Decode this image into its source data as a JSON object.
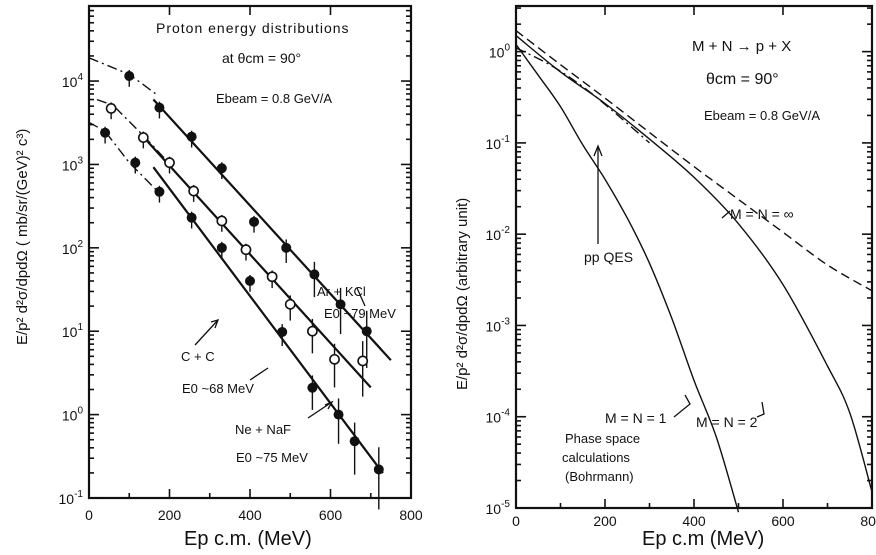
{
  "chart_data": [
    {
      "type": "scatter",
      "ylabel": "E/p² d²σ/dpdΩ  ( mb/sr/(GeV)² c³)",
      "xlabel": "Ep c.m. (MeV)",
      "xlim": [
        0,
        800
      ],
      "ylim_log10": [
        -1,
        4.9
      ],
      "x_ticks": [
        "0",
        "200",
        "400",
        "600",
        "800"
      ],
      "y_ticks": [
        "10-1",
        "100",
        "101",
        "102",
        "103",
        "104"
      ],
      "annotations": {
        "title_line1": "Proton energy distributions",
        "title_line2": "at θcm = 90°",
        "beam": "Ebeam = 0.8 GeV/A",
        "ar_label": "Ar + KCl",
        "ar_e0": "E0 ~79 MeV",
        "cc_label": "C + C",
        "cc_e0": "E0 ~68 MeV",
        "ne_label": "Ne + NaF",
        "ne_e0": "E0 ~75 MeV"
      },
      "series": [
        {
          "name": "Ar + KCl",
          "marker": "filled",
          "x": [
            40,
            100,
            175,
            255,
            330,
            410,
            490,
            560,
            625,
            690
          ],
          "y": [
            2400,
            11500,
            4800,
            2150,
            900,
            205,
            100,
            48,
            21,
            10
          ],
          "fit_from": 160,
          "fit_to": 750
        },
        {
          "name": "C + C",
          "marker": "open",
          "x": [
            55,
            135,
            200,
            260,
            330,
            390,
            455,
            500,
            555,
            610,
            680
          ],
          "y": [
            4700,
            2100,
            1050,
            480,
            210,
            95,
            45,
            21,
            10,
            4.6,
            4.4
          ],
          "fit_from": 145,
          "fit_to": 700
        },
        {
          "name": "Ne + NaF",
          "marker": "filled",
          "x": [
            115,
            175,
            255,
            330,
            400,
            480,
            555,
            620,
            660,
            720
          ],
          "y": [
            1050,
            470,
            230,
            100,
            40,
            9.8,
            2.1,
            1.0,
            0.48,
            0.22
          ],
          "fit_from": 160,
          "fit_to": 730
        }
      ],
      "extrapolations": [
        {
          "style": "dashdot",
          "x": [
            0,
            100,
            170
          ],
          "y": [
            19000,
            12000,
            6800
          ]
        },
        {
          "style": "dashdot",
          "x": [
            20,
            60,
            140,
            190
          ],
          "y": [
            6000,
            5100,
            2100,
            1150
          ]
        },
        {
          "style": "dashdot",
          "x": [
            0,
            40,
            100,
            170
          ],
          "y": [
            3200,
            2500,
            1050,
            480
          ]
        }
      ]
    },
    {
      "type": "line",
      "ylabel": "E/p² d²σ/dpdΩ (arbitrary unit)",
      "xlabel": "Ep c.m (MeV)",
      "xlim": [
        0,
        800
      ],
      "ylim_log10": [
        -5,
        0.5
      ],
      "x_ticks": [
        "0",
        "200",
        "400",
        "600",
        "800"
      ],
      "y_ticks": [
        "10-5",
        "10-4",
        "10-3",
        "10-2",
        "10-1",
        "100"
      ],
      "annotations": {
        "reaction": "M + N → p + X",
        "theta": "θcm = 90°",
        "beam": "Ebeam = 0.8 GeV/A",
        "ppqes": "pp QES",
        "inf_label": "M = N = ∞",
        "n1_label": "M = N = 1",
        "n2_label": "M = N = 2",
        "phase1": "Phase space",
        "phase2": "calculations",
        "phase3": "(Bohrmann)"
      },
      "series": [
        {
          "name": "M = N = ∞",
          "style": "dash",
          "x": [
            0,
            100,
            200,
            300,
            400,
            500,
            600,
            700,
            800
          ],
          "y": [
            1.7,
            0.72,
            0.31,
            0.13,
            0.055,
            0.024,
            0.0105,
            0.0046,
            0.0024
          ]
        },
        {
          "name": "M = N = 2",
          "style": "solid-dashdot",
          "x": [
            0,
            100,
            200,
            300,
            400,
            500,
            600,
            700,
            750,
            800
          ],
          "y": [
            1.5,
            0.6,
            0.27,
            0.11,
            0.042,
            0.013,
            0.0028,
            0.00036,
            0.00011,
            1.5e-05
          ]
        },
        {
          "name": "M = N = 1",
          "style": "solid",
          "x": [
            0,
            50,
            100,
            150,
            200,
            250,
            300,
            350,
            400,
            450,
            500
          ],
          "y": [
            1.2,
            0.55,
            0.25,
            0.095,
            0.04,
            0.015,
            0.0048,
            0.0012,
            0.00025,
            6e-05,
            9e-06
          ]
        },
        {
          "name": "pp QES",
          "style": "dashdot",
          "x": [
            0,
            80,
            160,
            240,
            300
          ],
          "y": [
            1.1,
            0.7,
            0.38,
            0.18,
            0.1
          ]
        }
      ]
    }
  ]
}
